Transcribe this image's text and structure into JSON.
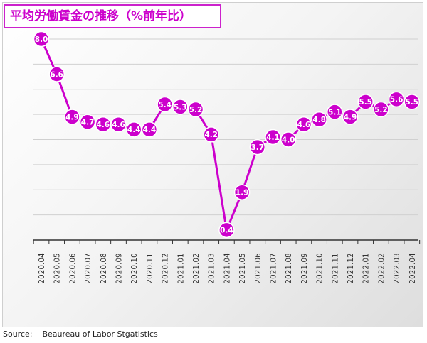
{
  "chart_data": {
    "type": "line",
    "title": "平均労働賃金の推移（%前年比）",
    "xlabel": "",
    "ylabel": "",
    "categories": [
      "2020.04",
      "2020.05",
      "2020.06",
      "2020.07",
      "2020.08",
      "2020.09",
      "2020.10",
      "2020.11",
      "2020.12",
      "2021.01",
      "2021.02",
      "2021.03",
      "2021.04",
      "2021.05",
      "2021.06",
      "2021.07",
      "2021.08",
      "2021.09",
      "2021.10",
      "2021.11",
      "2021.12",
      "2022.01",
      "2022.02",
      "2022.03",
      "2022.04"
    ],
    "series": [
      {
        "name": "",
        "values": [
          8.0,
          6.6,
          4.9,
          4.7,
          4.6,
          4.6,
          4.4,
          4.4,
          5.4,
          5.3,
          5.2,
          4.2,
          0.4,
          1.9,
          3.7,
          4.1,
          4.0,
          4.6,
          4.8,
          5.1,
          4.9,
          5.5,
          5.2,
          5.6,
          5.5
        ]
      }
    ],
    "ylim": [
      0,
      8.0
    ],
    "grid": true,
    "legend": "none",
    "colors": {
      "line": "#cc00cc",
      "marker": "#cc00cc",
      "label": "#ffffff",
      "title": "#cc00cc"
    }
  },
  "source": "Source:    Beaureau of Labor Stgatistics"
}
